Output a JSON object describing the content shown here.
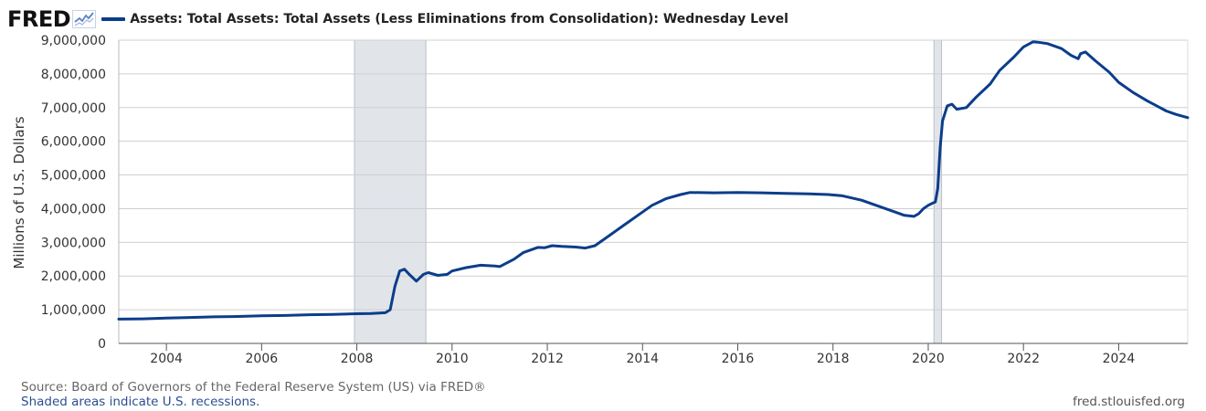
{
  "header": {
    "logo_text": "FRED",
    "logo_icon": "line-chart-icon",
    "legend_label": "Assets: Total Assets: Total Assets (Less Eliminations from Consolidation): Wednesday Level"
  },
  "footer": {
    "source": "Source: Board of Governors of the Federal Reserve System (US) via FRED®",
    "recession_note": "Shaded areas indicate U.S. recessions.",
    "site": "fred.stlouisfed.org"
  },
  "colors": {
    "series": "#0c3d8a",
    "recession": "#e1e5ea",
    "grid": "#cfcfcf",
    "axis": "#555555"
  },
  "chart_data": {
    "type": "line",
    "title": "",
    "xlabel": "",
    "ylabel": "Millions of U.S. Dollars",
    "xlim": [
      2003.0,
      2025.45
    ],
    "ylim": [
      0,
      9000000
    ],
    "x_ticks": [
      2004,
      2006,
      2008,
      2010,
      2012,
      2014,
      2016,
      2018,
      2020,
      2022,
      2024
    ],
    "y_ticks": [
      0,
      1000000,
      2000000,
      3000000,
      4000000,
      5000000,
      6000000,
      7000000,
      8000000,
      9000000
    ],
    "y_tick_labels": [
      "0",
      "1,000,000",
      "2,000,000",
      "3,000,000",
      "4,000,000",
      "5,000,000",
      "6,000,000",
      "7,000,000",
      "8,000,000",
      "9,000,000"
    ],
    "grid": true,
    "legend_position": "top-left",
    "recessions": [
      [
        2007.95,
        2009.45
      ],
      [
        2020.12,
        2020.28
      ]
    ],
    "series": [
      {
        "name": "Assets: Total Assets: Total Assets (Less Eliminations from Consolidation): Wednesday Level",
        "x": [
          2003.0,
          2003.5,
          2004.0,
          2004.5,
          2005.0,
          2005.5,
          2006.0,
          2006.5,
          2007.0,
          2007.5,
          2008.0,
          2008.3,
          2008.6,
          2008.7,
          2008.8,
          2008.9,
          2009.0,
          2009.1,
          2009.25,
          2009.4,
          2009.5,
          2009.7,
          2009.9,
          2010.0,
          2010.3,
          2010.6,
          2010.9,
          2011.0,
          2011.3,
          2011.5,
          2011.8,
          2011.95,
          2012.1,
          2012.3,
          2012.6,
          2012.8,
          2013.0,
          2013.3,
          2013.6,
          2013.9,
          2014.2,
          2014.5,
          2014.8,
          2015.0,
          2015.5,
          2016.0,
          2016.5,
          2017.0,
          2017.5,
          2017.9,
          2018.2,
          2018.6,
          2019.0,
          2019.3,
          2019.5,
          2019.7,
          2019.8,
          2019.9,
          2020.0,
          2020.1,
          2020.15,
          2020.2,
          2020.25,
          2020.3,
          2020.4,
          2020.5,
          2020.6,
          2020.8,
          2021.0,
          2021.3,
          2021.5,
          2021.8,
          2022.0,
          2022.2,
          2022.3,
          2022.5,
          2022.8,
          2023.0,
          2023.15,
          2023.2,
          2023.3,
          2023.5,
          2023.8,
          2024.0,
          2024.3,
          2024.6,
          2024.8,
          2025.0,
          2025.2,
          2025.45
        ],
        "values": [
          720000,
          730000,
          750000,
          770000,
          790000,
          800000,
          820000,
          830000,
          850000,
          860000,
          880000,
          890000,
          910000,
          1000000,
          1700000,
          2150000,
          2200000,
          2050000,
          1850000,
          2050000,
          2100000,
          2020000,
          2050000,
          2150000,
          2250000,
          2320000,
          2300000,
          2280000,
          2500000,
          2700000,
          2850000,
          2840000,
          2900000,
          2880000,
          2860000,
          2830000,
          2900000,
          3200000,
          3500000,
          3800000,
          4100000,
          4300000,
          4420000,
          4480000,
          4470000,
          4480000,
          4470000,
          4450000,
          4440000,
          4420000,
          4380000,
          4250000,
          4050000,
          3900000,
          3800000,
          3770000,
          3850000,
          4000000,
          4100000,
          4170000,
          4200000,
          4600000,
          5800000,
          6600000,
          7050000,
          7100000,
          6950000,
          7000000,
          7300000,
          7700000,
          8100000,
          8500000,
          8800000,
          8950000,
          8940000,
          8900000,
          8750000,
          8550000,
          8450000,
          8600000,
          8650000,
          8400000,
          8050000,
          7750000,
          7450000,
          7200000,
          7050000,
          6900000,
          6800000,
          6700000
        ]
      }
    ]
  }
}
